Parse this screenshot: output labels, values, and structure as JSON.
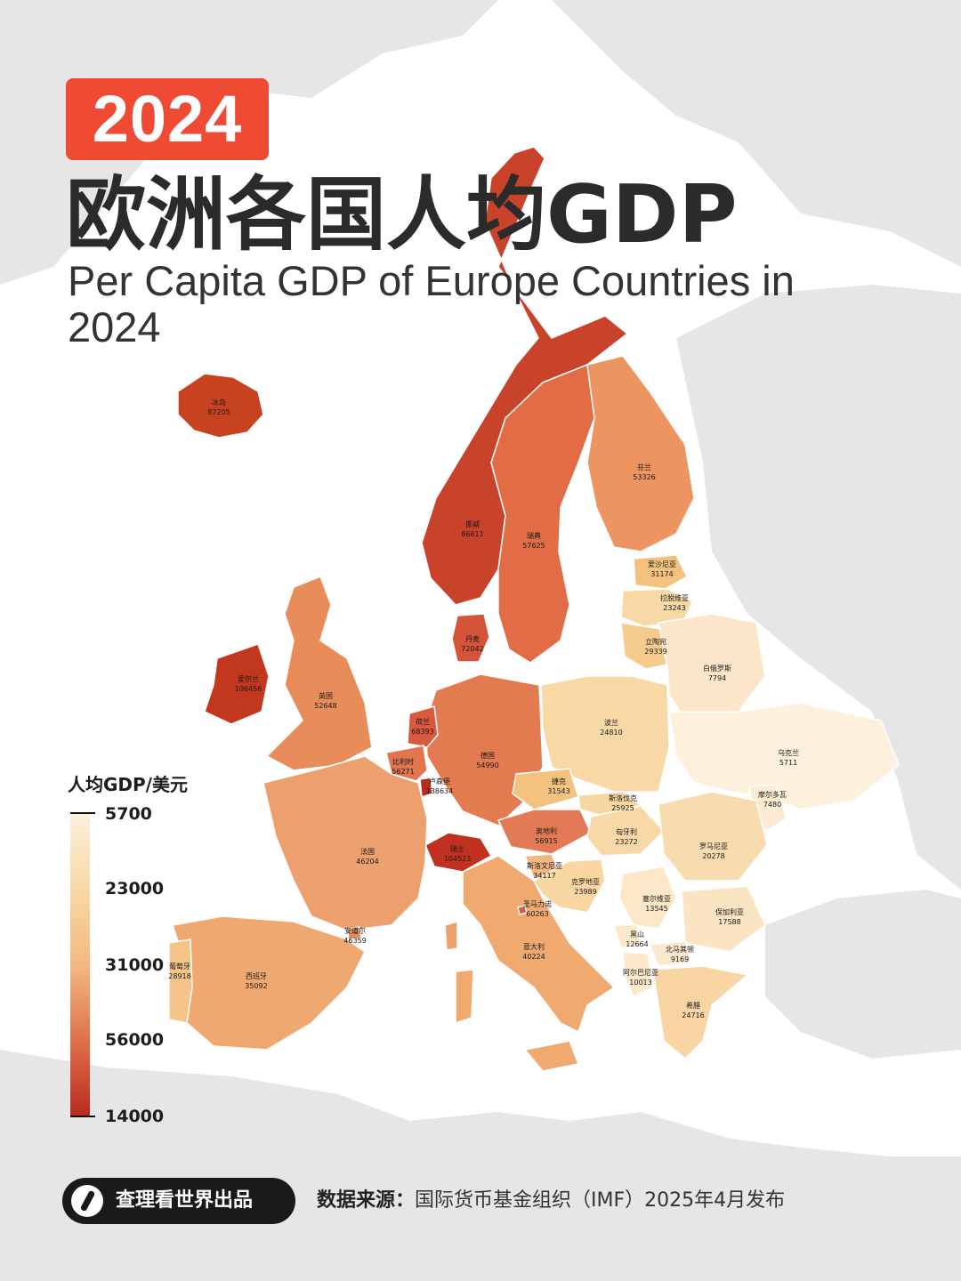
{
  "header": {
    "year": "2024",
    "title_cn": "欧洲各国人均GDP",
    "title_en": "Per Capita GDP of Europe Countries in 2024"
  },
  "legend": {
    "title": "人均GDP/美元",
    "labels": [
      "5700",
      "23000",
      "31000",
      "56000",
      "14000"
    ]
  },
  "countries": [
    {
      "name": "冰岛",
      "value": "87205"
    },
    {
      "name": "挪威",
      "value": "86611"
    },
    {
      "name": "瑞典",
      "value": "57625"
    },
    {
      "name": "芬兰",
      "value": "53326"
    },
    {
      "name": "爱沙尼亚",
      "value": "31174"
    },
    {
      "name": "拉脱维亚",
      "value": "23243"
    },
    {
      "name": "立陶宛",
      "value": "29339"
    },
    {
      "name": "丹麦",
      "value": "72042"
    },
    {
      "name": "爱尔兰",
      "value": "106456"
    },
    {
      "name": "英国",
      "value": "52648"
    },
    {
      "name": "荷兰",
      "value": "68393"
    },
    {
      "name": "比利时",
      "value": "56271"
    },
    {
      "name": "卢森堡",
      "value": "138634"
    },
    {
      "name": "德国",
      "value": "54990"
    },
    {
      "name": "波兰",
      "value": "24810"
    },
    {
      "name": "白俄罗斯",
      "value": "7794"
    },
    {
      "name": "乌克兰",
      "value": "5711"
    },
    {
      "name": "捷克",
      "value": "31543"
    },
    {
      "name": "斯洛伐克",
      "value": "25925"
    },
    {
      "name": "摩尔多瓦",
      "value": "7480"
    },
    {
      "name": "奥地利",
      "value": "56915"
    },
    {
      "name": "匈牙利",
      "value": "23272"
    },
    {
      "name": "罗马尼亚",
      "value": "20278"
    },
    {
      "name": "法国",
      "value": "46204"
    },
    {
      "name": "瑞士",
      "value": "104523"
    },
    {
      "name": "斯洛文尼亚",
      "value": "34117"
    },
    {
      "name": "克罗地亚",
      "value": "23989"
    },
    {
      "name": "圣马力诺",
      "value": "60263"
    },
    {
      "name": "塞尔维亚",
      "value": "13545"
    },
    {
      "name": "保加利亚",
      "value": "17588"
    },
    {
      "name": "安道尔",
      "value": "46359"
    },
    {
      "name": "黑山",
      "value": "12664"
    },
    {
      "name": "北马其顿",
      "value": "9169"
    },
    {
      "name": "意大利",
      "value": "40224"
    },
    {
      "name": "阿尔巴尼亚",
      "value": "10013"
    },
    {
      "name": "葡萄牙",
      "value": "28918"
    },
    {
      "name": "西班牙",
      "value": "35092"
    },
    {
      "name": "希腊",
      "value": "24716"
    }
  ],
  "footer": {
    "credit": "查理看世界出品",
    "source_label": "数据来源：",
    "source_text": "国际货币基金组织（IMF）2025年4月发布"
  },
  "colors": {
    "badge": "#ef4a33",
    "ocean": "#ffffff",
    "land_outside": "#e6e6e6",
    "scale_low": "#fdf0dd",
    "scale_high": "#b8291e"
  }
}
